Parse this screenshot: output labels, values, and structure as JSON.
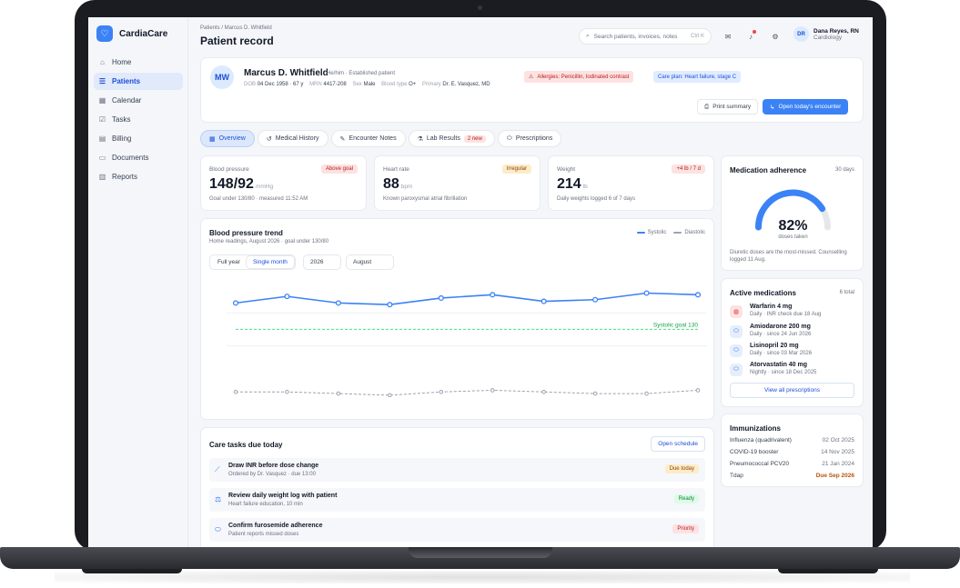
{
  "app": {
    "name": "CardiaCare"
  },
  "nav": {
    "items": [
      {
        "label": "Home",
        "icon": "home-icon"
      },
      {
        "label": "Patients",
        "icon": "patients-icon",
        "active": true
      },
      {
        "label": "Calendar",
        "icon": "calendar-icon"
      },
      {
        "label": "Tasks",
        "icon": "tasks-icon"
      },
      {
        "label": "Billing",
        "icon": "billing-icon"
      },
      {
        "label": "Documents",
        "icon": "documents-icon"
      },
      {
        "label": "Reports",
        "icon": "reports-icon"
      }
    ]
  },
  "header": {
    "breadcrumb": "Patients / Marcus D. Whitfield",
    "title": "Patient record",
    "search_placeholder": "Search patients, invoices, notes",
    "search_shortcut": "Ctrl K",
    "user": {
      "initials": "DR",
      "name": "Dana Reyes, RN",
      "role": "Cardiology"
    }
  },
  "patient": {
    "initials": "MW",
    "name": "Marcus D. Whitfield",
    "subtitle": "He/him · Established patient",
    "meta": [
      {
        "label": "DOB",
        "value": "04 Dec 1958 · 67 y"
      },
      {
        "label": "MRN",
        "value": "4417-208"
      },
      {
        "label": "Sex",
        "value": "Male"
      },
      {
        "label": "Blood type",
        "value": "O+"
      },
      {
        "label": "Primary",
        "value": "Dr. E. Vasquez, MD"
      }
    ],
    "allergy": "Allergies: Penicillin, Iodinated contrast",
    "care_plan": "Care plan: Heart failure, stage C",
    "print_label": "Print summary",
    "encounter_label": "Open today's encounter"
  },
  "tabs": [
    {
      "label": "Overview",
      "active": true
    },
    {
      "label": "Medical History"
    },
    {
      "label": "Encounter Notes"
    },
    {
      "label": "Lab Results",
      "badge": "2 new"
    },
    {
      "label": "Prescriptions"
    }
  ],
  "stats": [
    {
      "label": "Blood pressure",
      "badge": "Above goal",
      "value": "148/92",
      "unit": "mmHg",
      "note": "Goal under 130/80 · measured 11:52 AM"
    },
    {
      "label": "Heart rate",
      "badge": "Irregular",
      "value": "88",
      "unit": "bpm",
      "note": "Known paroxysmal atrial fibrillation"
    },
    {
      "label": "Weight",
      "badge": "+4 lb / 7 d",
      "value": "214",
      "unit": "lb",
      "note": "Daily weights logged 6 of 7 days"
    }
  ],
  "chart": {
    "title": "Blood pressure trend",
    "subtitle": "Home readings, August 2026 · goal under 130/80",
    "toggle": [
      "Full year",
      "Single month"
    ],
    "year": "2026",
    "month": "August",
    "goal_label": "Systolic goal 130"
  },
  "chart_data": {
    "type": "line",
    "x": [
      1,
      2,
      3,
      4,
      5,
      6,
      7,
      8,
      9,
      10
    ],
    "series": [
      {
        "name": "Systolic",
        "color": "#3b82f6",
        "values": [
          146,
          150,
          146,
          145,
          149,
          151,
          147,
          148,
          152,
          151
        ]
      },
      {
        "name": "Diastolic",
        "color": "#9ca3af",
        "values": [
          92,
          92,
          91,
          90,
          92,
          93,
          92,
          91,
          91,
          93
        ]
      }
    ],
    "goal": 130,
    "ylim": [
      80,
      160
    ],
    "grid": true
  },
  "tasks": {
    "title": "Care tasks due today",
    "action": "Open schedule",
    "items": [
      {
        "title": "Draw INR before dose change",
        "sub": "Ordered by Dr. Vasquez · due 13:00",
        "status": "Due today",
        "status_color": "#92400e"
      },
      {
        "title": "Review daily weight log with patient",
        "sub": "Heart failure education, 10 min",
        "status": "Ready",
        "status_color": "#15803d"
      },
      {
        "title": "Confirm furosemide adherence",
        "sub": "Patient reports missed doses",
        "status": "Priority",
        "status_color": "#b91c1c"
      }
    ]
  },
  "adherence": {
    "title": "Medication adherence",
    "period": "30 days",
    "value": "82%",
    "fraction": 0.82,
    "caption": "doses taken",
    "note": "Diuretic doses are the most-missed. Counselling logged 11 Aug."
  },
  "medications": {
    "title": "Active medications",
    "count": "6 total",
    "items": [
      {
        "name": "Warfarin 4 mg",
        "sub": "Daily · INR check due 18 Aug",
        "alert": true
      },
      {
        "name": "Amiodarone 200 mg",
        "sub": "Daily · since 24 Jun 2026"
      },
      {
        "name": "Lisinopril 20 mg",
        "sub": "Daily · since 03 Mar 2026"
      },
      {
        "name": "Atorvastatin 40 mg",
        "sub": "Nightly · since 18 Dec 2025"
      }
    ],
    "view_all": "View all prescriptions"
  },
  "immunizations": {
    "title": "Immunizations",
    "items": [
      {
        "name": "Influenza (quadrivalent)",
        "date": "02 Oct 2025"
      },
      {
        "name": "COVID-19 booster",
        "date": "14 Nov 2025"
      },
      {
        "name": "Pneumococcal PCV20",
        "date": "21 Jan 2024"
      },
      {
        "name": "Tdap",
        "date": "Due Sep 2026",
        "due": true
      }
    ]
  }
}
